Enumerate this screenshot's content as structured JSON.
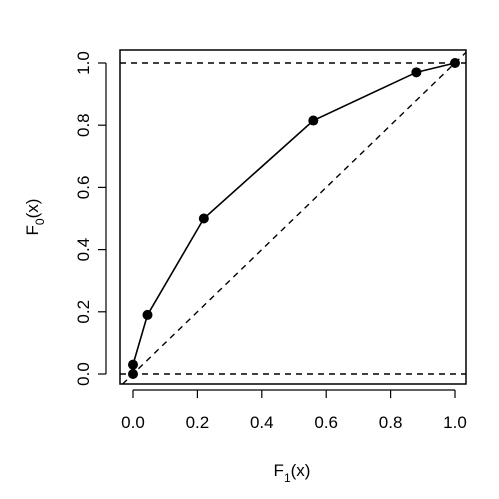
{
  "chart_data": {
    "type": "line",
    "xlabel": {
      "main": "F",
      "sub": "1",
      "rest": "(x)"
    },
    "ylabel": {
      "main": "F",
      "sub": "0",
      "rest": "(x)"
    },
    "xlim": [
      0,
      1
    ],
    "ylim": [
      0,
      1
    ],
    "x_ticks": [
      "0.0",
      "0.2",
      "0.4",
      "0.6",
      "0.8",
      "1.0"
    ],
    "y_ticks": [
      "0.0",
      "0.2",
      "0.4",
      "0.6",
      "0.8",
      "1.0"
    ],
    "grid": false,
    "series": [
      {
        "x": [
          0.0,
          0.0,
          0.045,
          0.22,
          0.56,
          0.88,
          1.0
        ],
        "y": [
          0.0,
          0.03,
          0.19,
          0.5,
          0.815,
          0.97,
          1.0
        ],
        "marker": "filled-circle",
        "line": "solid"
      }
    ],
    "reference_lines": [
      {
        "kind": "diagonal",
        "from": [
          0,
          0
        ],
        "to": [
          1,
          1
        ],
        "style": "dashed"
      },
      {
        "kind": "horizontal",
        "y": 0,
        "style": "dashed"
      },
      {
        "kind": "horizontal",
        "y": 1,
        "style": "dashed"
      }
    ]
  }
}
